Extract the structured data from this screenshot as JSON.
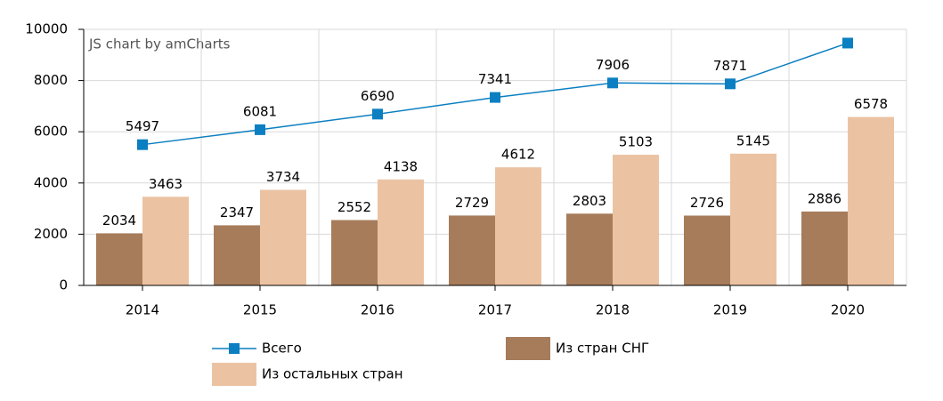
{
  "chart_data": {
    "type": "bar",
    "watermark": "JS chart by amCharts",
    "categories": [
      "2014",
      "2015",
      "2016",
      "2017",
      "2018",
      "2019",
      "2020"
    ],
    "series": [
      {
        "name": "Всего",
        "type": "line",
        "color": "#0b7fc1",
        "values": [
          5497,
          6081,
          6690,
          7341,
          7906,
          7871,
          9464
        ],
        "value_labels": [
          "5497",
          "6081",
          "6690",
          "7341",
          "7906",
          "7871",
          null
        ]
      },
      {
        "name": "Из стран СНГ",
        "type": "bar",
        "color": "#a67c5b",
        "values": [
          2034,
          2347,
          2552,
          2729,
          2803,
          2726,
          2886
        ]
      },
      {
        "name": "Из остальных стран",
        "type": "bar",
        "color": "#ebc3a3",
        "values": [
          3463,
          3734,
          4138,
          4612,
          5103,
          5145,
          6578
        ]
      }
    ],
    "ylim": [
      0,
      10000
    ],
    "yticks": [
      0,
      2000,
      4000,
      6000,
      8000,
      10000
    ],
    "grid": true
  }
}
